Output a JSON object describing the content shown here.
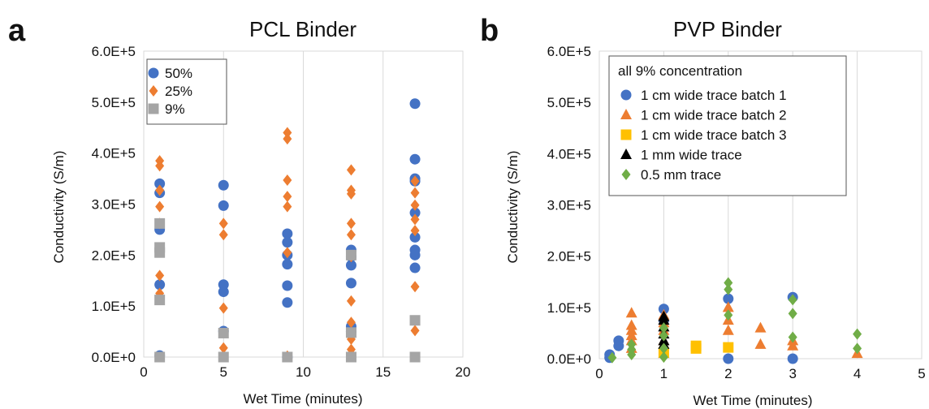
{
  "chart_data": [
    {
      "panel": "a",
      "type": "scatter",
      "title": "PCL Binder",
      "xlabel": "Wet Time (minutes)",
      "ylabel": "Conductivity (S/m)",
      "xlim": [
        0,
        20
      ],
      "ylim": [
        0,
        600000
      ],
      "xticks": [
        0,
        5,
        10,
        15,
        20
      ],
      "yticks": [
        0,
        100000,
        200000,
        300000,
        400000,
        500000,
        600000
      ],
      "ytick_labels": [
        "0.0E+0",
        "1.0E+5",
        "2.0E+5",
        "3.0E+5",
        "4.0E+5",
        "5.0E+5",
        "6.0E+5"
      ],
      "xtick_labels": [
        "0",
        "5",
        "10",
        "15",
        "20"
      ],
      "grid": "vertical",
      "legend_placement": "top-left",
      "series": [
        {
          "name": "50%",
          "marker": "circle",
          "color": "#4472C4",
          "points": [
            [
              1,
              340000
            ],
            [
              1,
              322000
            ],
            [
              1,
              250000
            ],
            [
              1,
              142000
            ],
            [
              1,
              3000
            ],
            [
              5,
              337000
            ],
            [
              5,
              297000
            ],
            [
              5,
              142000
            ],
            [
              5,
              128000
            ],
            [
              5,
              51000
            ],
            [
              9,
              242000
            ],
            [
              9,
              225000
            ],
            [
              9,
              200000
            ],
            [
              9,
              182000
            ],
            [
              9,
              140000
            ],
            [
              9,
              107000
            ],
            [
              9,
              0
            ],
            [
              13,
              210000
            ],
            [
              13,
              197000
            ],
            [
              13,
              180000
            ],
            [
              13,
              145000
            ],
            [
              13,
              60000
            ],
            [
              13,
              50000
            ],
            [
              17,
              497000
            ],
            [
              17,
              388000
            ],
            [
              17,
              350000
            ],
            [
              17,
              345000
            ],
            [
              17,
              283000
            ],
            [
              17,
              235000
            ],
            [
              17,
              210000
            ],
            [
              17,
              200000
            ],
            [
              17,
              175000
            ]
          ]
        },
        {
          "name": "25%",
          "marker": "diamond",
          "color": "#ED7D31",
          "points": [
            [
              1,
              385000
            ],
            [
              1,
              375000
            ],
            [
              1,
              327000
            ],
            [
              1,
              295000
            ],
            [
              1,
              262000
            ],
            [
              1,
              160000
            ],
            [
              1,
              125000
            ],
            [
              5,
              262000
            ],
            [
              5,
              240000
            ],
            [
              5,
              96000
            ],
            [
              5,
              18000
            ],
            [
              5,
              3000
            ],
            [
              9,
              440000
            ],
            [
              9,
              428000
            ],
            [
              9,
              347000
            ],
            [
              9,
              315000
            ],
            [
              9,
              295000
            ],
            [
              9,
              205000
            ],
            [
              9,
              2000
            ],
            [
              13,
              367000
            ],
            [
              13,
              327000
            ],
            [
              13,
              320000
            ],
            [
              13,
              262000
            ],
            [
              13,
              240000
            ],
            [
              13,
              197000
            ],
            [
              13,
              110000
            ],
            [
              13,
              68000
            ],
            [
              13,
              35000
            ],
            [
              13,
              15000
            ],
            [
              17,
              345000
            ],
            [
              17,
              322000
            ],
            [
              17,
              298000
            ],
            [
              17,
              270000
            ],
            [
              17,
              248000
            ],
            [
              17,
              138000
            ],
            [
              17,
              52000
            ]
          ]
        },
        {
          "name": "9%",
          "marker": "square",
          "color": "#A5A5A5",
          "points": [
            [
              1,
              262000
            ],
            [
              1,
              215000
            ],
            [
              1,
              205000
            ],
            [
              1,
              112000
            ],
            [
              1,
              0
            ],
            [
              5,
              47000
            ],
            [
              5,
              0
            ],
            [
              9,
              0
            ],
            [
              13,
              200000
            ],
            [
              13,
              48000
            ],
            [
              13,
              0
            ],
            [
              17,
              72000
            ],
            [
              17,
              0
            ]
          ]
        }
      ]
    },
    {
      "panel": "b",
      "type": "scatter",
      "title": "PVP Binder",
      "xlabel": "Wet Time (minutes)",
      "ylabel": "Conductivity (S/m)",
      "xlim": [
        0,
        5
      ],
      "ylim": [
        0,
        600000
      ],
      "xticks": [
        0,
        1,
        2,
        3,
        4,
        5
      ],
      "yticks": [
        0,
        100000,
        200000,
        300000,
        400000,
        500000,
        600000
      ],
      "ytick_labels": [
        "0.0E+0",
        "1.0E+5",
        "2.0E+5",
        "3.0E+5",
        "4.0E+5",
        "5.0E+5",
        "6.0E+5"
      ],
      "xtick_labels": [
        "0",
        "1",
        "2",
        "3",
        "4",
        "5"
      ],
      "grid": "vertical",
      "legend_placement": "top-left",
      "legend_title": "all 9% concentration",
      "series": [
        {
          "name": "1 cm wide trace batch 1",
          "marker": "circle",
          "color": "#4472C4",
          "points": [
            [
              0.16,
              8000
            ],
            [
              0.16,
              2000
            ],
            [
              0.3,
              35000
            ],
            [
              0.3,
              25000
            ],
            [
              1,
              97000
            ],
            [
              1,
              75000
            ],
            [
              2,
              117000
            ],
            [
              2,
              0
            ],
            [
              3,
              120000
            ],
            [
              3,
              0
            ]
          ]
        },
        {
          "name": "1 cm wide trace batch 2",
          "marker": "triangle",
          "color": "#ED7D31",
          "points": [
            [
              0.5,
              89000
            ],
            [
              0.5,
              65000
            ],
            [
              0.5,
              55000
            ],
            [
              0.5,
              45000
            ],
            [
              0.5,
              35000
            ],
            [
              0.5,
              20000
            ],
            [
              1,
              85000
            ],
            [
              1,
              70000
            ],
            [
              1,
              55000
            ],
            [
              1,
              35000
            ],
            [
              1,
              10000
            ],
            [
              2,
              100000
            ],
            [
              2,
              75000
            ],
            [
              2,
              55000
            ],
            [
              2.5,
              60000
            ],
            [
              2.5,
              28000
            ],
            [
              3,
              35000
            ],
            [
              3,
              25000
            ],
            [
              4,
              10000
            ]
          ]
        },
        {
          "name": "1 cm wide trace batch 3",
          "marker": "square",
          "color": "#FFC000",
          "points": [
            [
              1,
              12000
            ],
            [
              1.5,
              25000
            ],
            [
              1.5,
              20000
            ],
            [
              2,
              22000
            ]
          ]
        },
        {
          "name": "1 mm wide trace",
          "marker": "triangle",
          "color": "#000000",
          "points": [
            [
              1,
              82000
            ],
            [
              1,
              75000
            ],
            [
              1,
              62000
            ],
            [
              1,
              48000
            ],
            [
              1,
              35000
            ],
            [
              1,
              28000
            ]
          ]
        },
        {
          "name": "0.5 mm trace",
          "marker": "diamond",
          "color": "#70AD47",
          "points": [
            [
              0.2,
              2000
            ],
            [
              0.5,
              28000
            ],
            [
              0.5,
              18000
            ],
            [
              0.5,
              8000
            ],
            [
              1,
              60000
            ],
            [
              1,
              45000
            ],
            [
              1,
              20000
            ],
            [
              1,
              3000
            ],
            [
              2,
              148000
            ],
            [
              2,
              135000
            ],
            [
              2,
              85000
            ],
            [
              3,
              115000
            ],
            [
              3,
              88000
            ],
            [
              3,
              42000
            ],
            [
              4,
              48000
            ],
            [
              4,
              20000
            ]
          ]
        }
      ]
    }
  ],
  "figure": {
    "panel_letters": [
      "a",
      "b"
    ]
  }
}
